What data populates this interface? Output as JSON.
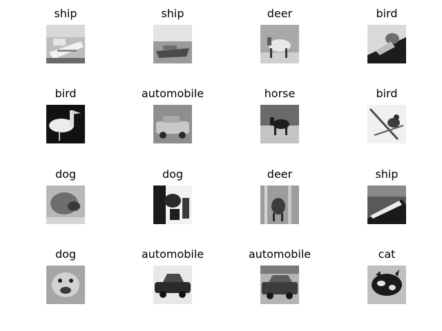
{
  "grid": {
    "rows": 4,
    "cols": 4,
    "cells": [
      {
        "label": "ship",
        "subject": "ship"
      },
      {
        "label": "ship",
        "subject": "ship"
      },
      {
        "label": "deer",
        "subject": "deer"
      },
      {
        "label": "bird",
        "subject": "bird"
      },
      {
        "label": "bird",
        "subject": "bird"
      },
      {
        "label": "automobile",
        "subject": "automobile"
      },
      {
        "label": "horse",
        "subject": "horse"
      },
      {
        "label": "bird",
        "subject": "bird"
      },
      {
        "label": "dog",
        "subject": "dog"
      },
      {
        "label": "dog",
        "subject": "dog"
      },
      {
        "label": "deer",
        "subject": "deer"
      },
      {
        "label": "ship",
        "subject": "ship"
      },
      {
        "label": "dog",
        "subject": "dog"
      },
      {
        "label": "automobile",
        "subject": "automobile"
      },
      {
        "label": "automobile",
        "subject": "automobile"
      },
      {
        "label": "cat",
        "subject": "cat"
      }
    ]
  },
  "colors": {
    "background": "#ffffff",
    "text": "#000000"
  }
}
